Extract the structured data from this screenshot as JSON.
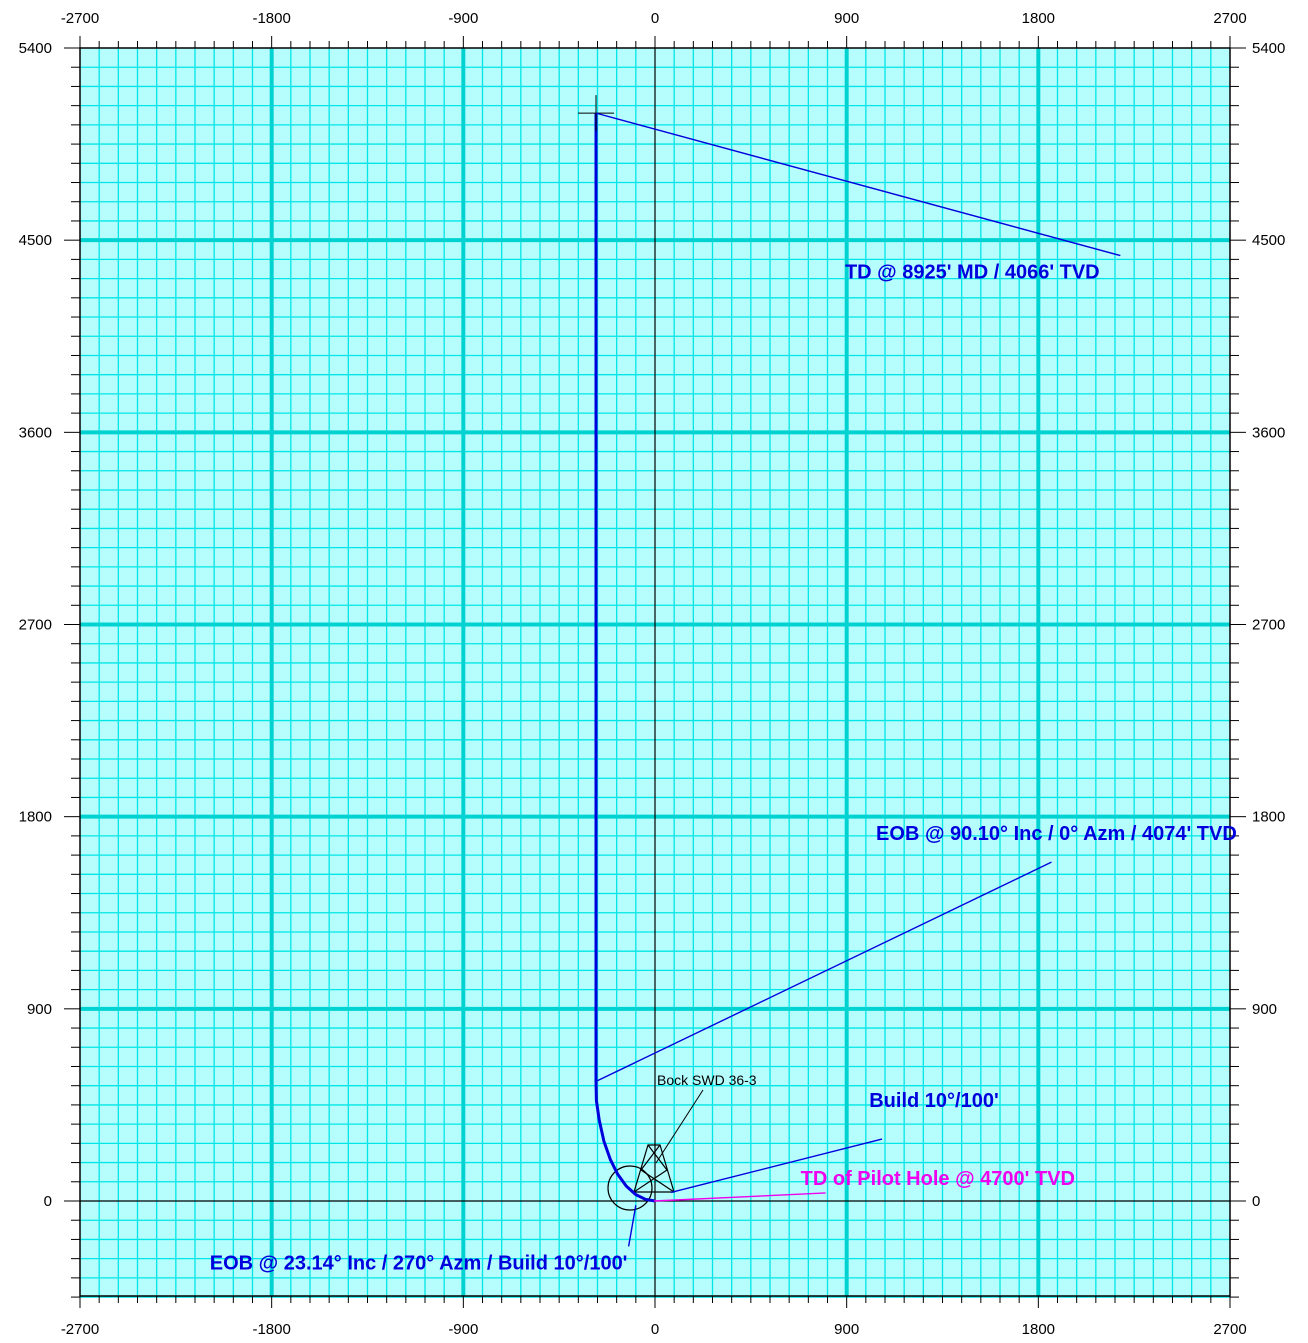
{
  "chart_data": {
    "type": "line",
    "title": "",
    "xlabel": "",
    "ylabel": "",
    "xlim": [
      -2700,
      2700
    ],
    "ylim": [
      -450,
      5400
    ],
    "grid": true,
    "x_ticks": [
      -2700,
      -1800,
      -900,
      0,
      900,
      1800,
      2700
    ],
    "y_ticks": [
      0,
      900,
      1800,
      2700,
      3600,
      4500,
      5400
    ],
    "x_tick_labels": [
      "-2700",
      "-1800",
      "-900",
      "0",
      "900",
      "1800",
      "2700"
    ],
    "y_tick_labels": [
      "0",
      "900",
      "1800",
      "2700",
      "3600",
      "4500",
      "5400"
    ],
    "well_name": "Bock SWD 36-3",
    "series": [
      {
        "color": "#0000dd",
        "x": [
          0,
          -45,
          -90,
          -135,
          -175,
          -210,
          -240,
          -262,
          -275,
          -277,
          -277,
          -277
        ],
        "y": [
          0,
          8,
          30,
          70,
          125,
          195,
          280,
          380,
          470,
          560,
          2000,
          5095
        ]
      }
    ],
    "annotations": [
      {
        "text": "TD @ 8925' MD / 4066' TVD",
        "color": "#0000dd",
        "x": 1490,
        "y": 4320,
        "point": [
          -277,
          5095
        ]
      },
      {
        "text": "EOB @ 90.10° Inc / 0° Azm / 4074' TVD",
        "color": "#0000dd",
        "x": 1885,
        "y": 1690,
        "point": [
          -277,
          560
        ]
      },
      {
        "text": "Build 10°/100'",
        "color": "#0000dd",
        "x": 1310,
        "y": 440,
        "point": [
          75,
          40
        ]
      },
      {
        "text": "TD of Pilot Hole @ 4700' TVD",
        "color": "#ee00ee",
        "x": 2210,
        "y": 75,
        "point": [
          -5,
          0
        ]
      },
      {
        "text": "EOB @ 23.14° Inc / 270° Azm / Build 10°/100'",
        "color": "#0000dd",
        "x": -1110,
        "y": -320,
        "point": [
          -90,
          -20
        ]
      }
    ]
  }
}
